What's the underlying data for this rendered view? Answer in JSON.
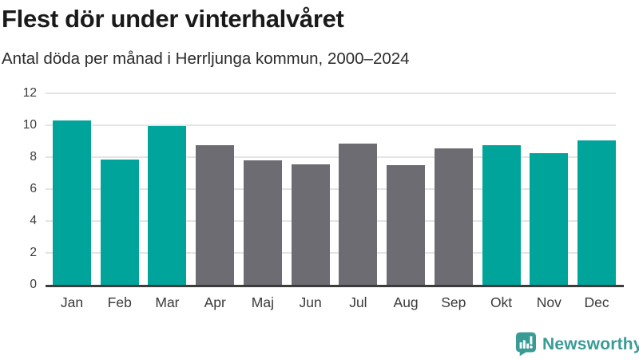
{
  "header": {
    "title": "Flest dör under vinterhalvåret",
    "subtitle": "Antal döda per månad i Herrljunga kommun, 2000–2024"
  },
  "chart_data": {
    "type": "bar",
    "title": "Flest dör under vinterhalvåret",
    "subtitle": "Antal döda per månad i Herrljunga kommun, 2000–2024",
    "categories": [
      "Jan",
      "Feb",
      "Mar",
      "Apr",
      "Maj",
      "Jun",
      "Jul",
      "Aug",
      "Sep",
      "Okt",
      "Nov",
      "Dec"
    ],
    "values": [
      10.3,
      7.85,
      9.95,
      8.75,
      7.8,
      7.55,
      8.85,
      7.5,
      8.55,
      8.75,
      8.25,
      9.05
    ],
    "bar_colors": [
      "teal",
      "teal",
      "teal",
      "gray",
      "gray",
      "gray",
      "gray",
      "gray",
      "gray",
      "teal",
      "teal",
      "teal"
    ],
    "highlight_meaning": "winter-half-year months highlighted in teal",
    "xlabel": "",
    "ylabel": "",
    "ylim": [
      0,
      12
    ],
    "yticks": [
      0,
      2,
      4,
      6,
      8,
      10,
      12
    ],
    "grid": "horizontal",
    "legend": "none"
  },
  "colors": {
    "teal": "#00A49B",
    "gray": "#6C6C72",
    "gridline": "#E4E4E4",
    "axis": "#3C3C3C",
    "tick_label": "#3A3A3A",
    "title": "#1A1A1A",
    "subtitle": "#2B2B2B",
    "logo": "#399B95"
  },
  "footer": {
    "brand": "Newsworthy"
  }
}
